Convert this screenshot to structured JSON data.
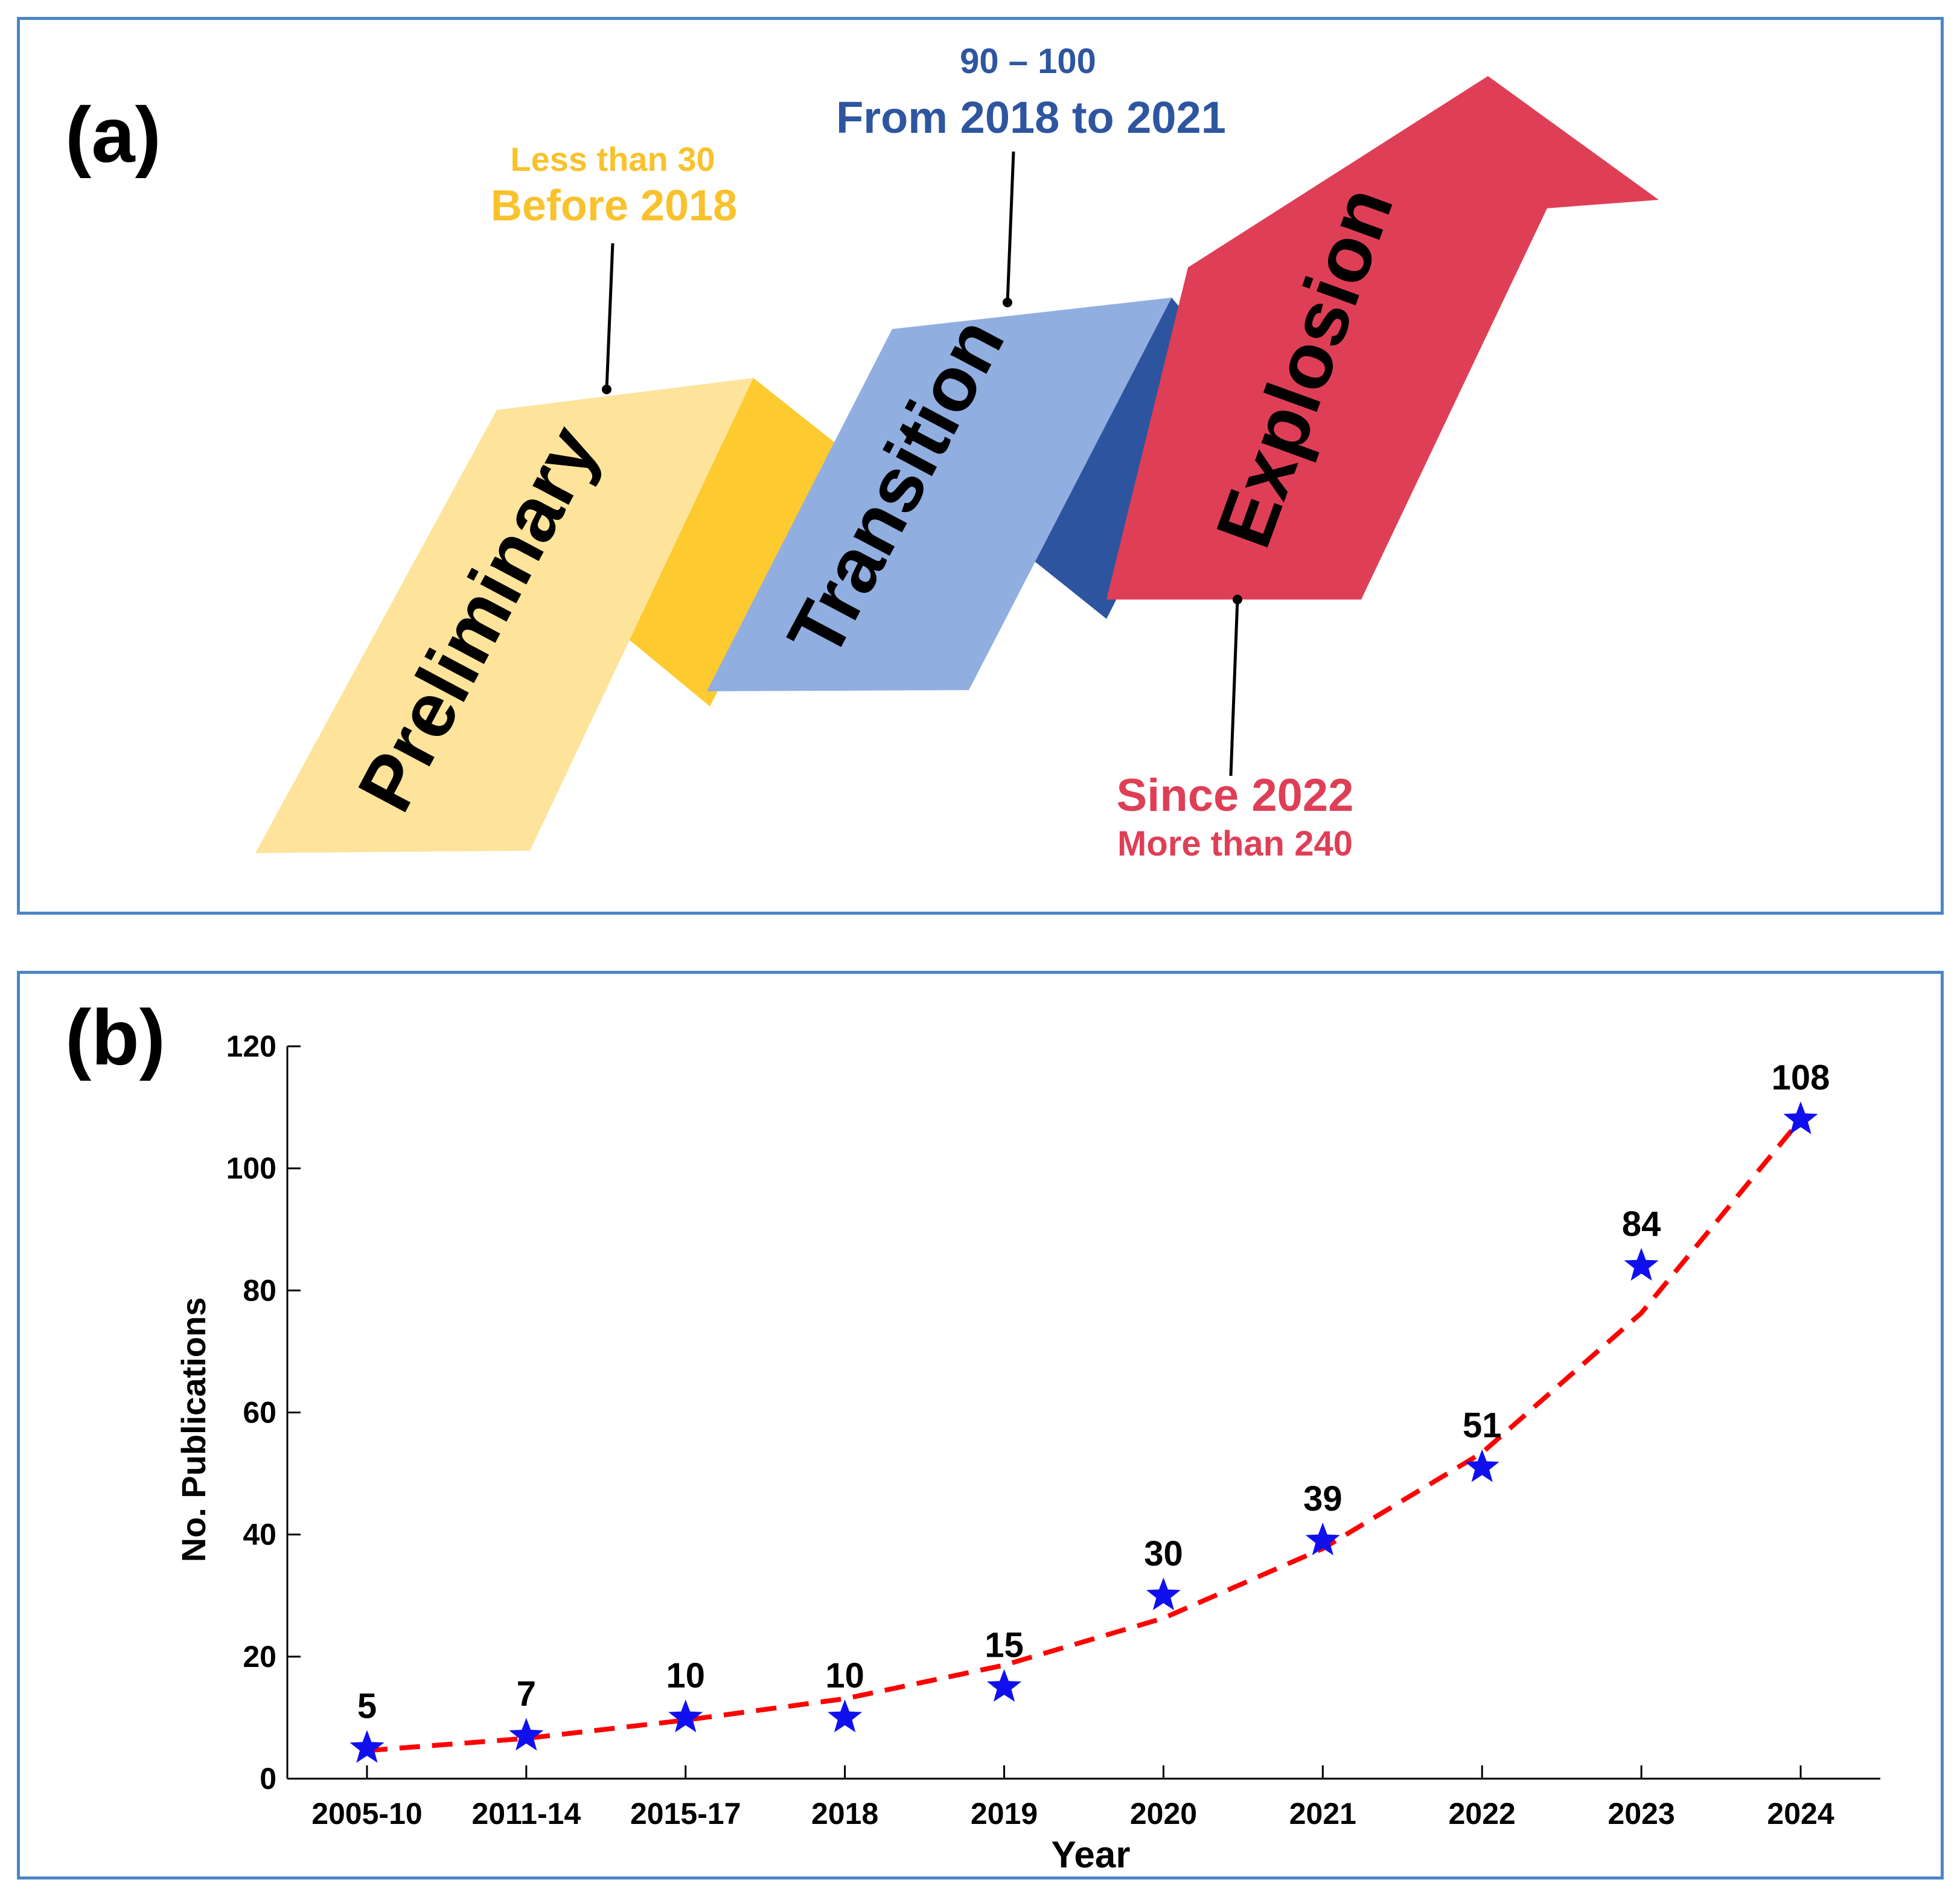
{
  "panel_a": {
    "label": "(a)",
    "stages": [
      {
        "name": "Preliminary",
        "period": "Before 2018",
        "count": "Less than 30",
        "color": "#fde49a",
        "side_color": "#fdca2f"
      },
      {
        "name": "Transition",
        "period": "From 2018 to 2021",
        "count": "90 – 100",
        "color": "#91aee0",
        "side_color": "#2d549f"
      },
      {
        "name": "Explosion",
        "period": "Since 2022",
        "count": "More than 240",
        "color": "#df3f56"
      }
    ],
    "colors": {
      "preliminary_text": "#f9c22c",
      "transition_text": "#2e55a0",
      "explosion_text": "#df3f56"
    }
  },
  "panel_b": {
    "label": "(b)"
  },
  "chart_data": {
    "type": "scatter",
    "title": "",
    "xlabel": "Year",
    "ylabel": "No. Publications",
    "categories": [
      "2005-10",
      "2011-14",
      "2015-17",
      "2018",
      "2019",
      "2020",
      "2021",
      "2022",
      "2023",
      "2024"
    ],
    "values": [
      5,
      7,
      10,
      10,
      15,
      30,
      39,
      51,
      84,
      108
    ],
    "data_labels": [
      "5",
      "7",
      "10",
      "10",
      "15",
      "30",
      "39",
      "51",
      "84",
      "108"
    ],
    "trend": {
      "type": "exponential fit",
      "style": "dashed",
      "color": "#ff0000",
      "values": [
        4.6,
        6.6,
        9.6,
        13.1,
        18.6,
        26.3,
        37.7,
        53.4,
        76.3,
        108
      ]
    },
    "marker": {
      "shape": "star",
      "color": "#1010ee"
    },
    "ylim": [
      0,
      120
    ],
    "yticks": [
      0,
      20,
      40,
      60,
      80,
      100,
      120
    ],
    "grid": false
  }
}
